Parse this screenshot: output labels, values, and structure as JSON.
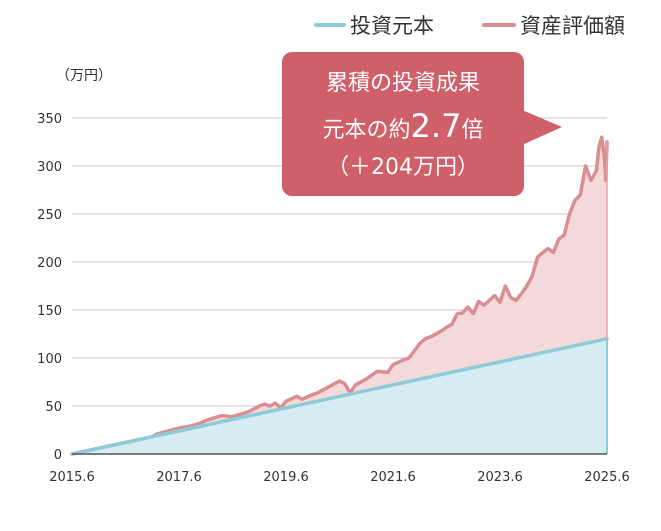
{
  "chart_data": {
    "type": "area",
    "title": "",
    "xlabel": "",
    "ylabel": "（万円）",
    "xlim": [
      2015.5,
      2025.5
    ],
    "ylim": [
      0,
      350
    ],
    "y_ticks": [
      0,
      50,
      100,
      150,
      200,
      250,
      300,
      350
    ],
    "x_ticks": [
      {
        "label": "2015.6",
        "value": 2015.5
      },
      {
        "label": "2017.6",
        "value": 2017.5
      },
      {
        "label": "2019.6",
        "value": 2019.5
      },
      {
        "label": "2021.6",
        "value": 2021.5
      },
      {
        "label": "2023.6",
        "value": 2023.5
      },
      {
        "label": "2025.6",
        "value": 2025.5
      }
    ],
    "grid": true,
    "legend_position": "top-right",
    "series": [
      {
        "name": "投資元本",
        "color": "#8ecbd9",
        "fill": "#d7edf3",
        "points": [
          [
            2015.5,
            0
          ],
          [
            2025.5,
            120
          ]
        ]
      },
      {
        "name": "資産評価額",
        "color": "#d98f92",
        "fill": "#f4d9da",
        "points": [
          [
            2015.5,
            0
          ],
          [
            2016.0,
            6
          ],
          [
            2016.5,
            12
          ],
          [
            2017.0,
            18
          ],
          [
            2017.1,
            21
          ],
          [
            2017.3,
            24
          ],
          [
            2017.5,
            27
          ],
          [
            2017.7,
            29
          ],
          [
            2017.9,
            32
          ],
          [
            2018.0,
            35
          ],
          [
            2018.3,
            40
          ],
          [
            2018.5,
            39
          ],
          [
            2018.8,
            44
          ],
          [
            2019.0,
            50
          ],
          [
            2019.1,
            52
          ],
          [
            2019.2,
            50
          ],
          [
            2019.3,
            53
          ],
          [
            2019.4,
            48
          ],
          [
            2019.5,
            55
          ],
          [
            2019.7,
            60
          ],
          [
            2019.8,
            57
          ],
          [
            2020.0,
            62
          ],
          [
            2020.1,
            64
          ],
          [
            2020.3,
            70
          ],
          [
            2020.5,
            76
          ],
          [
            2020.6,
            73
          ],
          [
            2020.7,
            64
          ],
          [
            2020.8,
            72
          ],
          [
            2021.0,
            78
          ],
          [
            2021.2,
            86
          ],
          [
            2021.4,
            85
          ],
          [
            2021.5,
            93
          ],
          [
            2021.7,
            98
          ],
          [
            2021.8,
            100
          ],
          [
            2022.0,
            115
          ],
          [
            2022.1,
            120
          ],
          [
            2022.2,
            122
          ],
          [
            2022.4,
            128
          ],
          [
            2022.5,
            132
          ],
          [
            2022.6,
            135
          ],
          [
            2022.7,
            146
          ],
          [
            2022.8,
            147
          ],
          [
            2022.9,
            153
          ],
          [
            2023.0,
            146
          ],
          [
            2023.1,
            159
          ],
          [
            2023.2,
            155
          ],
          [
            2023.4,
            165
          ],
          [
            2023.5,
            158
          ],
          [
            2023.6,
            175
          ],
          [
            2023.7,
            163
          ],
          [
            2023.8,
            160
          ],
          [
            2023.9,
            167
          ],
          [
            2024.0,
            175
          ],
          [
            2024.1,
            185
          ],
          [
            2024.2,
            205
          ],
          [
            2024.3,
            210
          ],
          [
            2024.4,
            214
          ],
          [
            2024.5,
            210
          ],
          [
            2024.6,
            224
          ],
          [
            2024.7,
            228
          ],
          [
            2024.8,
            250
          ],
          [
            2024.9,
            264
          ],
          [
            2025.0,
            270
          ],
          [
            2025.1,
            300
          ],
          [
            2025.2,
            285
          ],
          [
            2025.3,
            295
          ],
          [
            2025.35,
            320
          ],
          [
            2025.4,
            330
          ],
          [
            2025.45,
            310
          ],
          [
            2025.48,
            285
          ],
          [
            2025.5,
            325
          ]
        ]
      }
    ],
    "annotation": {
      "lines": [
        "累積の投資成果",
        "元本の約",
        "2.7",
        "倍",
        "（＋204万円）"
      ],
      "fill": "#cf5f68"
    }
  }
}
